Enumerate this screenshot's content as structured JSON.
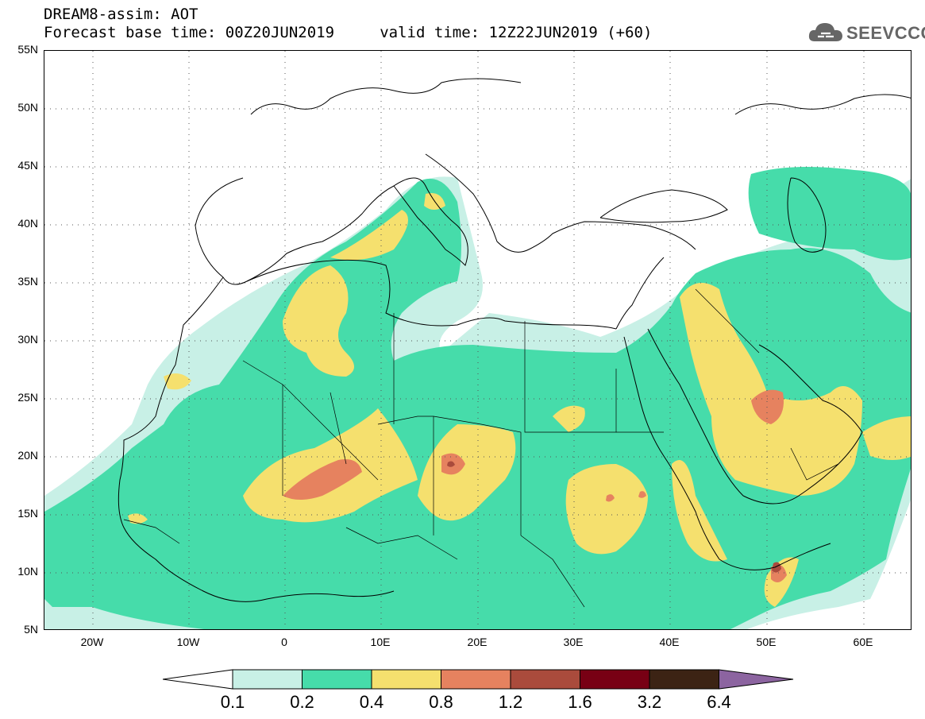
{
  "header": {
    "line1": "DREAM8-assim: AOT",
    "line2": "Forecast base time: 00Z20JUN2019     valid time: 12Z22JUN2019 (+60)"
  },
  "logo": {
    "text": "SEEVCCC",
    "icon": "cloud-icon"
  },
  "map": {
    "lon_range": [
      -25,
      65
    ],
    "lat_range": [
      5,
      55
    ],
    "lat_labels": [
      "55N",
      "50N",
      "45N",
      "40N",
      "35N",
      "30N",
      "25N",
      "20N",
      "15N",
      "10N",
      "5N"
    ],
    "lon_labels": [
      "20W",
      "10W",
      "0",
      "10E",
      "20E",
      "30E",
      "40E",
      "50E",
      "60E"
    ],
    "grid": "dotted"
  },
  "colorbar": {
    "labels": [
      "0.1",
      "0.2",
      "0.4",
      "0.8",
      "1.2",
      "1.6",
      "3.2",
      "6.4"
    ],
    "colors": [
      "#ffffff",
      "#c8f0e6",
      "#46dcaa",
      "#f5e06e",
      "#e6825f",
      "#aa4b3c",
      "#780014",
      "#3c2314",
      "#8c64a0"
    ]
  },
  "colors": {
    "aot_0_1": "#c8f0e6",
    "aot_0_2": "#46dcaa",
    "aot_0_4": "#f5e06e",
    "aot_0_8": "#e6825f",
    "aot_1_2": "#aa4b3c"
  }
}
